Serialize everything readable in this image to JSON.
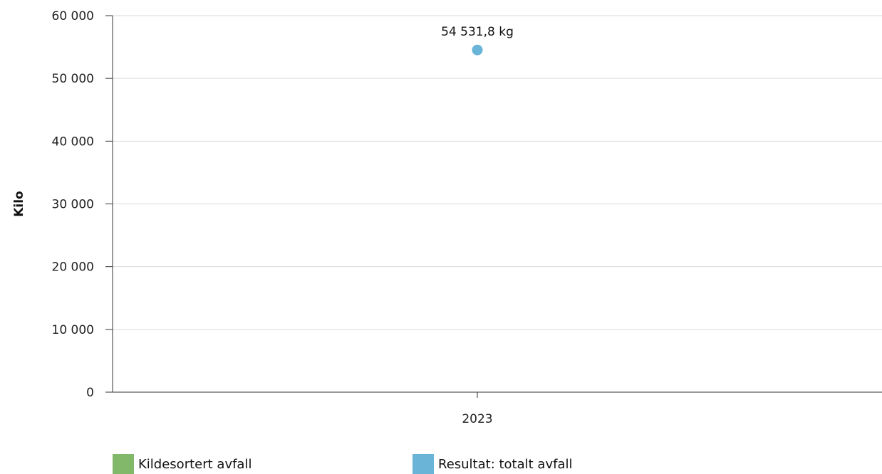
{
  "chart_data": {
    "type": "scatter",
    "title": "",
    "xlabel": "",
    "ylabel": "Kilo",
    "categories": [
      "2023"
    ],
    "ylim": [
      0,
      60000
    ],
    "yticks": [
      0,
      10000,
      20000,
      30000,
      40000,
      50000,
      60000
    ],
    "ytick_labels": [
      "0",
      "10 000",
      "20 000",
      "30 000",
      "40 000",
      "50 000",
      "60 000"
    ],
    "grid": true,
    "legend_position": "bottom",
    "series": [
      {
        "name": "Kildesortert avfall",
        "color": "#82b86a",
        "values": [
          null
        ]
      },
      {
        "name": "Resultat: totalt avfall",
        "color": "#6ab4d8",
        "values": [
          54531.8
        ],
        "data_labels": [
          "54 531,8 kg"
        ]
      }
    ]
  }
}
